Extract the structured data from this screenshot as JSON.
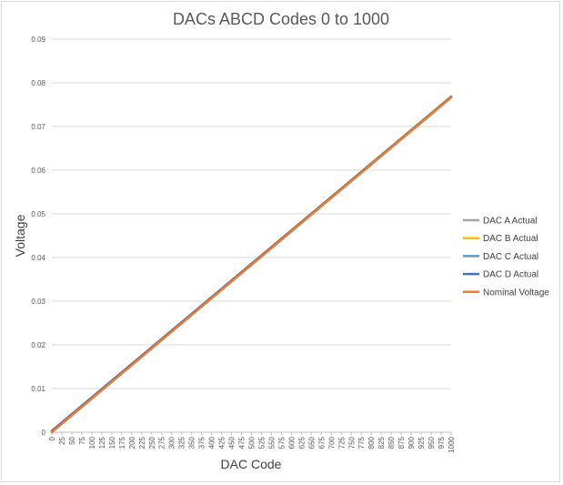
{
  "chart_data": {
    "type": "line",
    "title": "DACs ABCD Codes 0 to 1000",
    "xlabel": "DAC Code",
    "ylabel": "Voltage",
    "x_ticks": [
      0,
      25,
      50,
      75,
      100,
      125,
      150,
      175,
      200,
      225,
      250,
      275,
      300,
      325,
      350,
      375,
      400,
      425,
      450,
      475,
      500,
      525,
      550,
      575,
      600,
      625,
      650,
      675,
      700,
      725,
      750,
      775,
      800,
      825,
      850,
      875,
      900,
      925,
      950,
      975,
      1000
    ],
    "y_ticks": [
      "0",
      "0.01",
      "0.02",
      "0.03",
      "0.04",
      "0.05",
      "0.06",
      "0.07",
      "0.08",
      "0.09"
    ],
    "xlim": [
      0,
      1000
    ],
    "ylim": [
      0,
      0.09
    ],
    "grid": "horizontal",
    "legend_position": "right",
    "series": [
      {
        "name": "DAC A Actual",
        "color": "#a5a5a5",
        "x": [
          0,
          1000
        ],
        "y": [
          0.0003,
          0.0768
        ]
      },
      {
        "name": "DAC B Actual",
        "color": "#ffc000",
        "x": [
          0,
          1000
        ],
        "y": [
          0.0003,
          0.0769
        ]
      },
      {
        "name": "DAC C Actual",
        "color": "#5b9bd5",
        "x": [
          0,
          1000
        ],
        "y": [
          0.0003,
          0.0768
        ]
      },
      {
        "name": "DAC D Actual",
        "color": "#4472c4",
        "x": [
          0,
          1000
        ],
        "y": [
          0.0003,
          0.0767
        ]
      },
      {
        "name": "Nominal Voltage",
        "color": "#ed7d31",
        "x": [
          0,
          1000
        ],
        "y": [
          0.0,
          0.0766
        ]
      }
    ]
  }
}
